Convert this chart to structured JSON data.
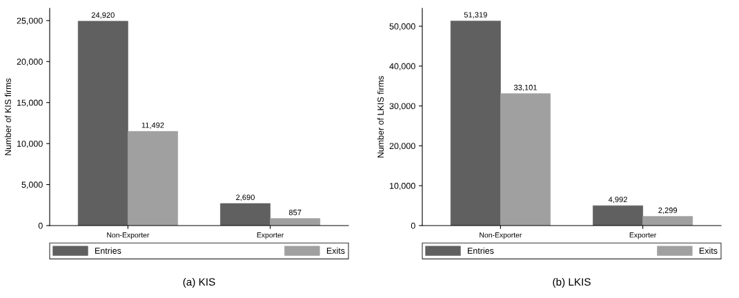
{
  "chart_data": [
    {
      "type": "bar",
      "ylabel": "Number of KIS firms",
      "categories": [
        "Non-Exporter",
        "Exporter"
      ],
      "series": [
        {
          "name": "Entries",
          "color": "#606060",
          "values": [
            24920,
            2690
          ],
          "value_labels": [
            "24,920",
            "2,690"
          ]
        },
        {
          "name": "Exits",
          "color": "#a0a0a0",
          "values": [
            11492,
            857
          ],
          "value_labels": [
            "11,492",
            "857"
          ]
        }
      ],
      "ylim": [
        0,
        26500
      ],
      "yticks": [
        0,
        {
          "value": 5000,
          "label": "5,000"
        },
        {
          "value": 10000,
          "label": "10,000"
        },
        {
          "value": 15000,
          "label": "15,000"
        },
        {
          "value": 20000,
          "label": "20,000"
        },
        {
          "value": 25000,
          "label": "25,000"
        }
      ],
      "grid": false,
      "legend": "bottom",
      "annotations": [
        "(a) KIS"
      ]
    },
    {
      "type": "bar",
      "ylabel": "Number of LKIS firms",
      "categories": [
        "Non-Exporter",
        "Exporter"
      ],
      "series": [
        {
          "name": "Entries",
          "color": "#606060",
          "values": [
            51319,
            4992
          ],
          "value_labels": [
            "51,319",
            "4,992"
          ]
        },
        {
          "name": "Exits",
          "color": "#a0a0a0",
          "values": [
            33101,
            2299
          ],
          "value_labels": [
            "33,101",
            "2,299"
          ]
        }
      ],
      "ylim": [
        0,
        54500
      ],
      "yticks": [
        0,
        {
          "value": 10000,
          "label": "10,000"
        },
        {
          "value": 20000,
          "label": "20,000"
        },
        {
          "value": 30000,
          "label": "30,000"
        },
        {
          "value": 40000,
          "label": "40,000"
        },
        {
          "value": 50000,
          "label": "50,000"
        }
      ],
      "grid": false,
      "legend": "bottom",
      "annotations": [
        "(b) LKIS"
      ]
    }
  ]
}
